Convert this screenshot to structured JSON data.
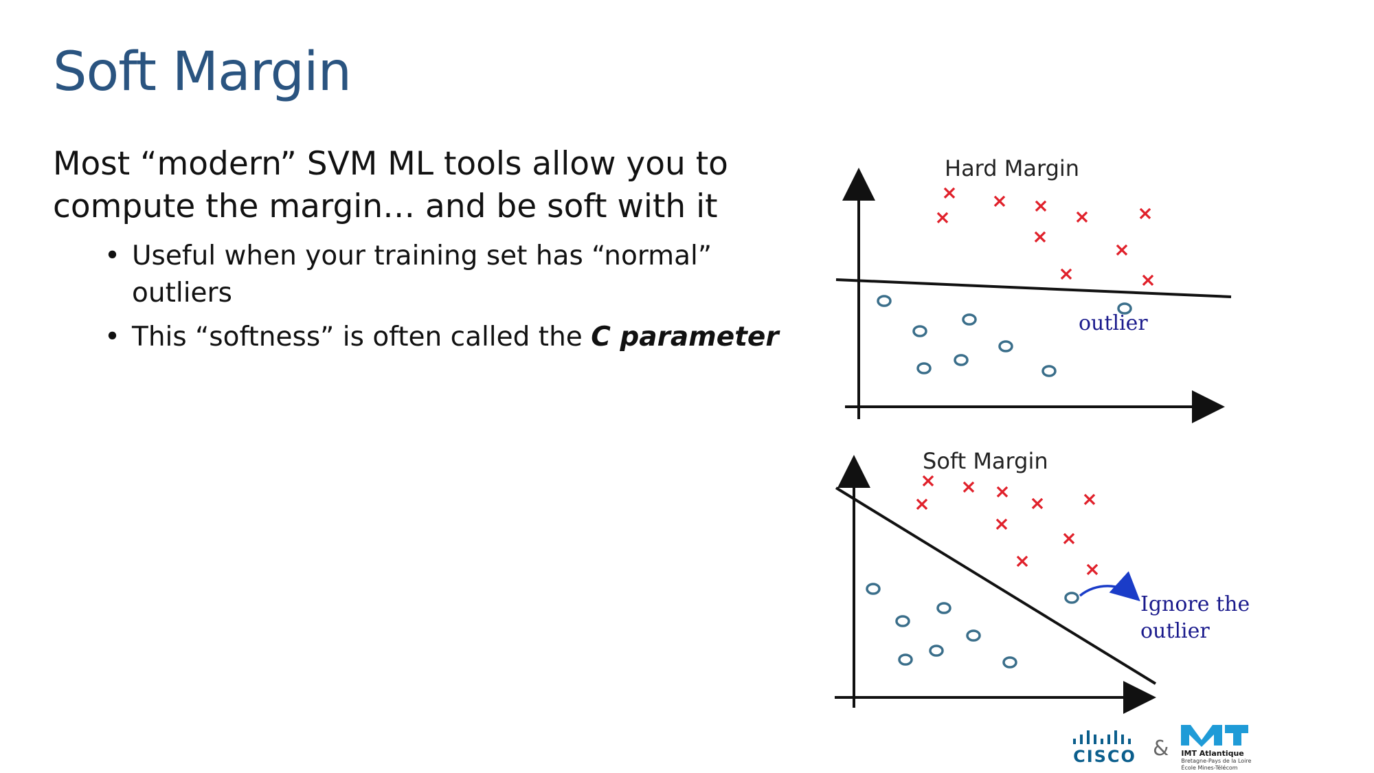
{
  "slide": {
    "title": "Soft Margin",
    "lead_lines": [
      "Most “modern” SVM ML tools allow you to",
      "compute the margin… and be soft with it"
    ],
    "bullet1_lines": [
      "Useful when your training set has “normal”",
      "outliers"
    ],
    "bullet2_text": "This “softness” is often called the ",
    "bullet2_emphasis": "C parameter",
    "bullet_glyph": "•"
  },
  "figure": {
    "hard_title": "Hard Margin",
    "hard_annotation": "outlier",
    "soft_title": "Soft Margin",
    "soft_annotation_line1": "Ignore the",
    "soft_annotation_line2": "outlier",
    "cross_glyph": "×",
    "colors": {
      "cross": "#e0202a",
      "circle": "#3a6e8a",
      "annotation": "#1a1a8c",
      "arrow": "#1a3cc8",
      "axis": "#111111"
    }
  },
  "footer": {
    "cisco_word": "CISCO",
    "ampersand": "&",
    "imt_name": "IMT Atlantique",
    "imt_sub1": "Bretagne-Pays de la Loire",
    "imt_sub2": "École Mines-Télécom"
  }
}
